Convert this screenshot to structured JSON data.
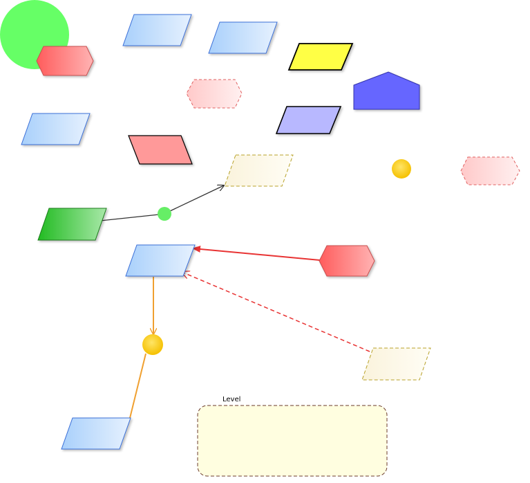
{
  "diagram": {
    "colors": {
      "blue_fill": "#c9e2fb",
      "blue_stroke": "#3b6fd8",
      "red_fill": "#ff8a8a",
      "red_stroke": "#c65050",
      "pink_fill": "#ffe0e0",
      "green_circle": "#66ff66",
      "green_shape": "#33cc33",
      "yellow_fill": "#ffff44",
      "gold": "#ffd033",
      "cream_fill": "#fdf8e6",
      "purple_fill": "#b8b8ff",
      "violet_fill": "#6666ff",
      "salmon_fill": "#ff9999",
      "level_fill": "#fffee0",
      "level_stroke": "#6b3b2b",
      "edge_dark": "#333333",
      "edge_red": "#e83333",
      "edge_orange": "#f0a030"
    },
    "level_container": {
      "label": "Level"
    }
  }
}
